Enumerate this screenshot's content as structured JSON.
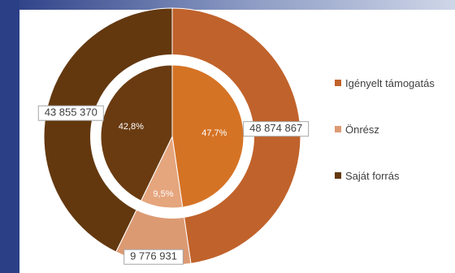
{
  "chart_data": {
    "type": "pie",
    "subtype": "doughnut",
    "series": [
      {
        "ring": "outer",
        "values": [
          48874867,
          9776931,
          43855370
        ],
        "labels": [
          "48 874 867",
          "9 776 931",
          "43 855 370"
        ]
      },
      {
        "ring": "inner",
        "values": [
          47.7,
          9.5,
          42.8
        ],
        "labels": [
          "47,7%",
          "9,5%",
          "42,8%"
        ]
      }
    ],
    "categories": [
      "Igényelt támogatás",
      "Önrész",
      "Saját forrás"
    ],
    "colors": [
      "#c0622b",
      "#dc9a73",
      "#63380f"
    ],
    "inner_colors": [
      "#d57325",
      "#e5a57d",
      "#6a3b11"
    ],
    "legend_position": "right"
  }
}
